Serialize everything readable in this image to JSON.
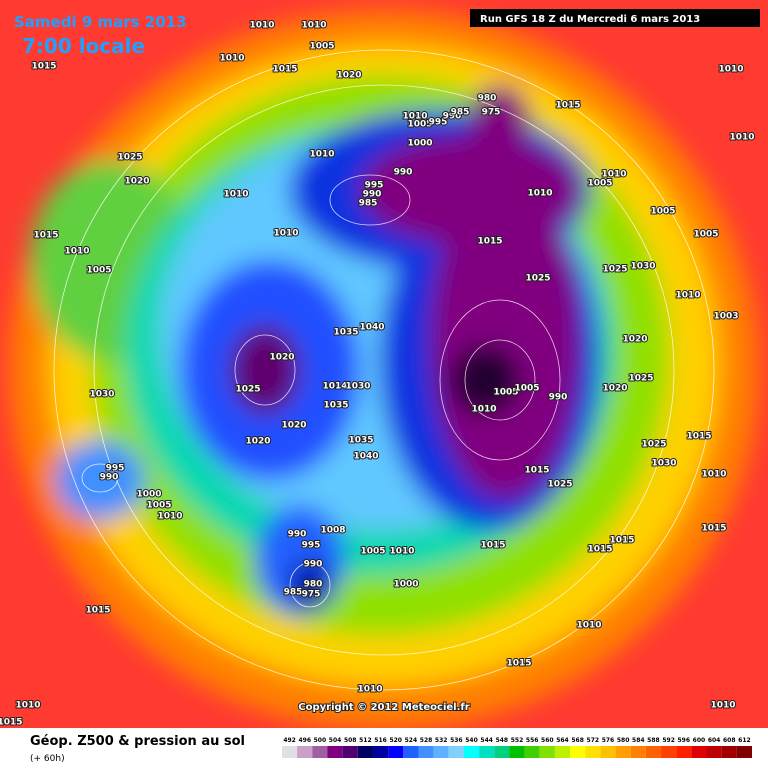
{
  "header": {
    "date": "Samedi 9 mars 2013",
    "time": "7:00 locale",
    "run": "Run GFS 18 Z du Mercredi 6 mars 2013"
  },
  "footer": {
    "copyright": "Copyright © 2012 Meteociel.fr",
    "title": "Géop. Z500 & pression au sol",
    "lead": "(+ 60h)"
  },
  "pressure_labels": [
    1010,
    1010,
    1005,
    1010,
    1015,
    1020,
    1015,
    1010,
    980,
    975,
    1010,
    1005,
    995,
    990,
    985,
    1015,
    1010,
    1000,
    1025,
    1020,
    995,
    990,
    985,
    990,
    1010,
    1010,
    1005,
    1010,
    1010,
    1005,
    1015,
    1010,
    1005,
    1010,
    1015,
    1005,
    1025,
    1025,
    1030,
    1010,
    1003,
    1040,
    1035,
    1020,
    1020,
    1025,
    1014,
    1030,
    1005,
    1005,
    990,
    1025,
    1020,
    1035,
    1010,
    1030,
    1020,
    1020,
    1035,
    1040,
    1015,
    1025,
    1015,
    1025,
    1030,
    1010,
    995,
    990,
    1000,
    1005,
    1010,
    1008,
    990,
    995,
    1015,
    1015,
    1015,
    1005,
    1010,
    990,
    980,
    985,
    975,
    1000,
    1015,
    1015,
    1010,
    1015,
    1010,
    1010,
    1010,
    1015
  ],
  "legend": {
    "values": [
      492,
      496,
      500,
      504,
      508,
      512,
      516,
      520,
      524,
      528,
      532,
      536,
      540,
      544,
      548,
      552,
      556,
      560,
      564,
      568,
      572,
      576,
      580,
      584,
      588,
      592,
      596,
      600,
      604,
      608,
      612
    ],
    "colors": [
      "#e0e0e0",
      "#c8a0c8",
      "#a060a0",
      "#800080",
      "#500070",
      "#000060",
      "#0000a0",
      "#0000ff",
      "#2060ff",
      "#4090ff",
      "#60b0ff",
      "#80d0ff",
      "#00ffff",
      "#00e0c0",
      "#00d080",
      "#00c000",
      "#40d000",
      "#80e000",
      "#c0f000",
      "#ffff00",
      "#ffe000",
      "#ffc000",
      "#ffa000",
      "#ff8000",
      "#ff6000",
      "#ff4000",
      "#ff2000",
      "#e00000",
      "#c00000",
      "#a00000",
      "#800000"
    ]
  }
}
